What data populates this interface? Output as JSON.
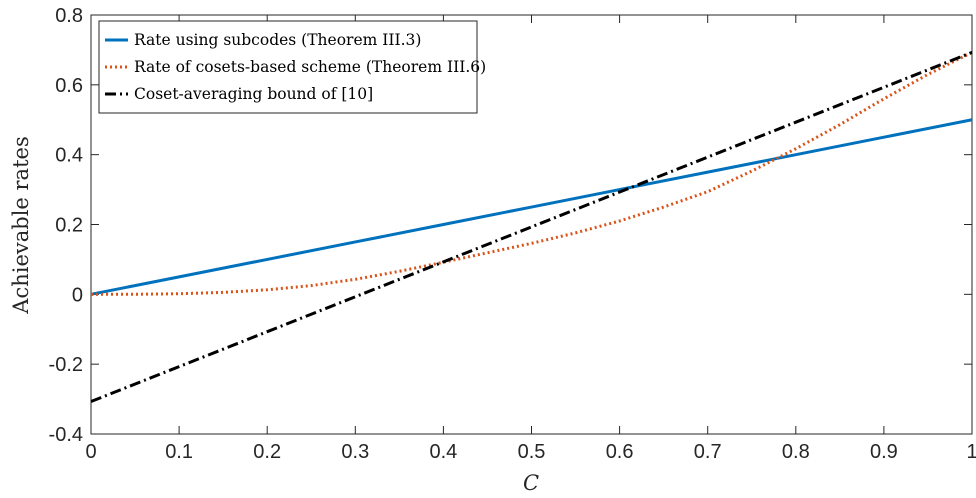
{
  "chart_data": {
    "type": "line",
    "xlabel": "C",
    "ylabel": "Achievable rates",
    "xlim": [
      0,
      1
    ],
    "ylim": [
      -0.4,
      0.8
    ],
    "x_ticks": [
      0,
      0.1,
      0.2,
      0.3,
      0.4,
      0.5,
      0.6,
      0.7,
      0.8,
      0.9,
      1
    ],
    "x_tick_labels": [
      "0",
      "0.1",
      "0.2",
      "0.3",
      "0.4",
      "0.5",
      "0.6",
      "0.7",
      "0.8",
      "0.9",
      "1"
    ],
    "y_ticks": [
      -0.4,
      -0.2,
      0,
      0.2,
      0.4,
      0.6,
      0.8
    ],
    "y_tick_labels": [
      "-0.4",
      "-0.2",
      "0",
      "0.2",
      "0.4",
      "0.6",
      "0.8"
    ],
    "grid": false,
    "legend_position": "top-left",
    "series": [
      {
        "name": "Rate using subcodes (Theorem III.3)",
        "color": "#0072BD",
        "style": "solid",
        "x": [
          0,
          0.1,
          0.2,
          0.3,
          0.4,
          0.5,
          0.6,
          0.7,
          0.8,
          0.9,
          1
        ],
        "y": [
          0,
          0.05,
          0.1,
          0.15,
          0.2,
          0.25,
          0.3,
          0.35,
          0.4,
          0.45,
          0.5
        ]
      },
      {
        "name": "Rate of cosets-based scheme (Theorem III.6)",
        "color": "#D95319",
        "style": "dotted",
        "x": [
          0,
          0.05,
          0.1,
          0.15,
          0.2,
          0.25,
          0.3,
          0.35,
          0.4,
          0.45,
          0.5,
          0.55,
          0.6,
          0.65,
          0.7,
          0.75,
          0.8,
          0.85,
          0.9,
          0.95,
          1
        ],
        "y": [
          0,
          0.0002,
          0.0017,
          0.0056,
          0.013,
          0.025,
          0.043,
          0.066,
          0.092,
          0.119,
          0.146,
          0.176,
          0.21,
          0.25,
          0.294,
          0.353,
          0.417,
          0.486,
          0.56,
          0.63,
          0.693
        ]
      },
      {
        "name": "Coset-averaging bound of [10]",
        "color": "#000000",
        "style": "dashdot",
        "x": [
          0,
          0.1,
          0.2,
          0.3,
          0.4,
          0.5,
          0.6,
          0.7,
          0.8,
          0.9,
          1
        ],
        "y": [
          -0.307,
          -0.207,
          -0.107,
          -0.007,
          0.093,
          0.193,
          0.293,
          0.393,
          0.493,
          0.593,
          0.693
        ]
      }
    ]
  }
}
